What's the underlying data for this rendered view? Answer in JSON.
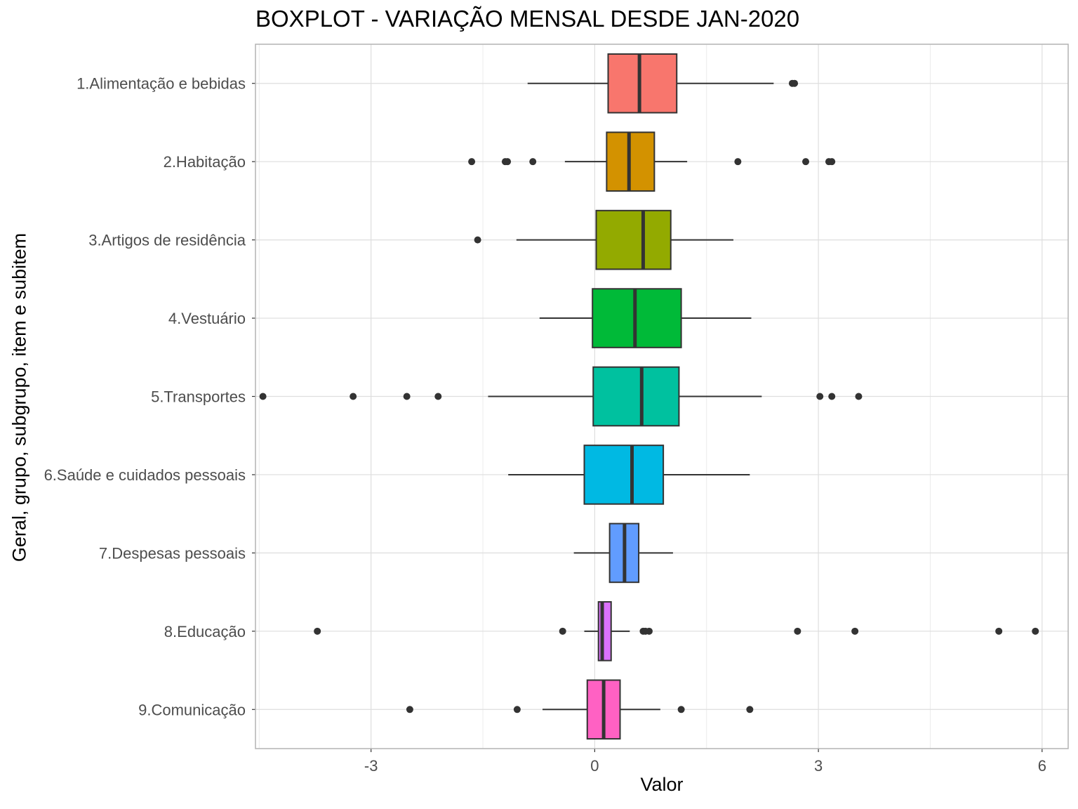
{
  "chart_data": {
    "type": "boxplot",
    "orientation": "horizontal",
    "title": "BOXPLOT - VARIAÇÃO MENSAL DESDE JAN-2020",
    "xlabel": "Valor",
    "ylabel": "Geral, grupo, subgrupo, item e subitem",
    "xlim": [
      -4.55,
      6.35
    ],
    "xticks": [
      -3,
      0,
      3,
      6
    ],
    "xtick_labels": [
      "-3",
      "0",
      "3",
      "6"
    ],
    "grid": true,
    "legend": "none",
    "series": [
      {
        "name": "1.Alimentação e bebidas",
        "color": "#F8766D",
        "whisker_low": -0.9,
        "q1": 0.18,
        "median": 0.6,
        "q3": 1.1,
        "whisker_high": 2.4,
        "outliers": [
          2.65,
          2.68
        ]
      },
      {
        "name": "2.Habitação",
        "color": "#D39200",
        "whisker_low": -0.4,
        "q1": 0.16,
        "median": 0.46,
        "q3": 0.8,
        "whisker_high": 1.24,
        "outliers": [
          -1.65,
          -1.2,
          -1.17,
          -0.83,
          1.92,
          2.83,
          3.14,
          3.18
        ]
      },
      {
        "name": "3.Artigos de residência",
        "color": "#93AA00",
        "whisker_low": -1.05,
        "q1": 0.02,
        "median": 0.65,
        "q3": 1.02,
        "whisker_high": 1.86,
        "outliers": [
          -1.57
        ]
      },
      {
        "name": "4.Vestuário",
        "color": "#00BA38",
        "whisker_low": -0.74,
        "q1": -0.03,
        "median": 0.54,
        "q3": 1.16,
        "whisker_high": 2.1,
        "outliers": []
      },
      {
        "name": "5.Transportes",
        "color": "#00C19F",
        "whisker_low": -1.43,
        "q1": -0.02,
        "median": 0.63,
        "q3": 1.13,
        "whisker_high": 2.24,
        "outliers": [
          -4.45,
          -3.24,
          -2.52,
          -2.1,
          3.02,
          3.18,
          3.54
        ]
      },
      {
        "name": "6.Saúde e cuidados pessoais",
        "color": "#00B9E3",
        "whisker_low": -1.16,
        "q1": -0.14,
        "median": 0.5,
        "q3": 0.92,
        "whisker_high": 2.08,
        "outliers": []
      },
      {
        "name": "7.Despesas pessoais",
        "color": "#619CFF",
        "whisker_low": -0.28,
        "q1": 0.2,
        "median": 0.4,
        "q3": 0.59,
        "whisker_high": 1.05,
        "outliers": []
      },
      {
        "name": "8.Educação",
        "color": "#DB72FB",
        "whisker_low": -0.14,
        "q1": 0.05,
        "median": 0.1,
        "q3": 0.22,
        "whisker_high": 0.47,
        "outliers": [
          -3.72,
          -0.43,
          0.65,
          0.68,
          0.73,
          2.72,
          3.49,
          5.42,
          5.91
        ]
      },
      {
        "name": "9.Comunicação",
        "color": "#FF61C3",
        "whisker_low": -0.7,
        "q1": -0.1,
        "median": 0.12,
        "q3": 0.34,
        "whisker_high": 0.88,
        "outliers": [
          -2.48,
          -1.04,
          1.16,
          2.08
        ]
      }
    ]
  }
}
